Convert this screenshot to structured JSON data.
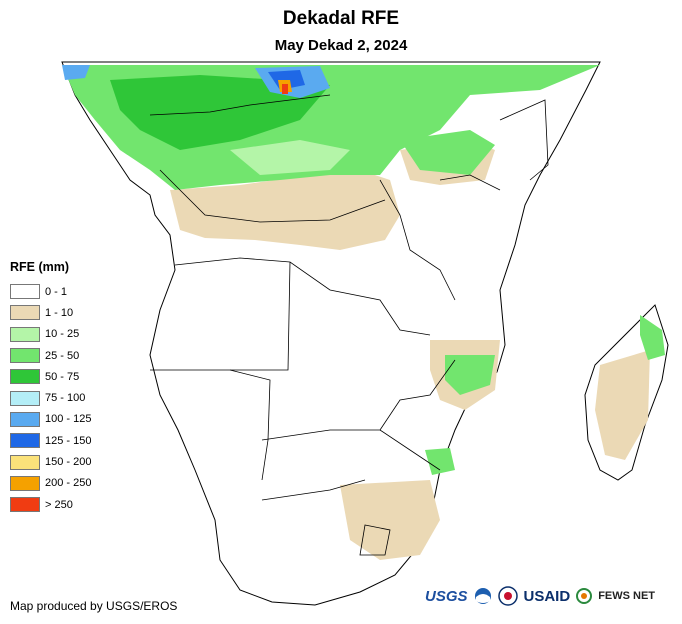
{
  "title": "Dekadal RFE",
  "subtitle": "May Dekad 2, 2024",
  "legend": {
    "title": "RFE (mm)",
    "items": [
      {
        "label": "0 - 1",
        "color": "#ffffff"
      },
      {
        "label": "1 - 10",
        "color": "#ebd9b5"
      },
      {
        "label": "10 - 25",
        "color": "#b4f5a8"
      },
      {
        "label": "25 - 50",
        "color": "#72e56e"
      },
      {
        "label": "50 - 75",
        "color": "#2fc638"
      },
      {
        "label": "75 - 100",
        "color": "#b4eef7"
      },
      {
        "label": "100 - 125",
        "color": "#5aaaf0"
      },
      {
        "label": "125 - 150",
        "color": "#1f68e6"
      },
      {
        "label": "150 - 200",
        "color": "#fbe27a"
      },
      {
        "label": "200 - 250",
        "color": "#f5a100"
      },
      {
        "label": "> 250",
        "color": "#f03c12"
      }
    ]
  },
  "credit": "Map produced by USGS/EROS",
  "logos": {
    "usgs": "USGS",
    "usaid": "USAID",
    "fews": "FEWS NET"
  }
}
